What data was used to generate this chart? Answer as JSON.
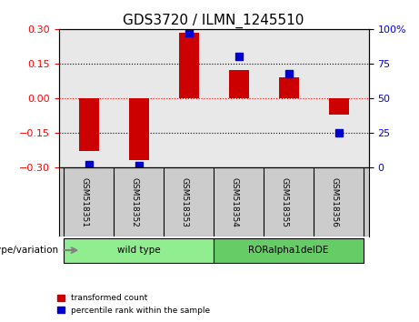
{
  "title": "GDS3720 / ILMN_1245510",
  "samples": [
    "GSM518351",
    "GSM518352",
    "GSM518353",
    "GSM518354",
    "GSM518355",
    "GSM518356"
  ],
  "transformed_count": [
    -0.23,
    -0.27,
    0.285,
    0.12,
    0.09,
    -0.07
  ],
  "percentile_rank": [
    2,
    1,
    97,
    80,
    68,
    25
  ],
  "ylim_left": [
    -0.3,
    0.3
  ],
  "ylim_right": [
    0,
    100
  ],
  "yticks_left": [
    -0.3,
    -0.15,
    0,
    0.15,
    0.3
  ],
  "yticks_right": [
    0,
    25,
    50,
    75,
    100
  ],
  "ytick_labels_right": [
    "0",
    "25",
    "50",
    "75",
    "100%"
  ],
  "hlines": [
    -0.15,
    0,
    0.15
  ],
  "hline_colors": [
    "black",
    "red",
    "black"
  ],
  "hline_styles": [
    "dotted",
    "dotted",
    "dotted"
  ],
  "bar_color": "#cc0000",
  "scatter_color": "#0000cc",
  "bar_width": 0.4,
  "groups": [
    {
      "label": "wild type",
      "indices": [
        0,
        1,
        2
      ],
      "color": "#90ee90"
    },
    {
      "label": "RORalpha1delDE",
      "indices": [
        3,
        4,
        5
      ],
      "color": "#66cc66"
    }
  ],
  "group_label": "genotype/variation",
  "legend_items": [
    {
      "label": "transformed count",
      "color": "#cc0000",
      "marker": "s"
    },
    {
      "label": "percentile rank within the sample",
      "color": "#0000cc",
      "marker": "s"
    }
  ],
  "plot_bg_color": "#e8e8e8",
  "tick_label_area_bg": "#cccccc",
  "xlabel_rotation": -90,
  "scatter_size": 40
}
